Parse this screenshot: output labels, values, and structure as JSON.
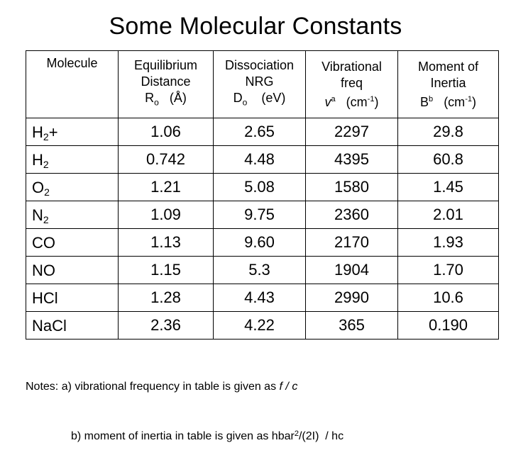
{
  "title": "Some Molecular Constants",
  "headers": {
    "molecule": "Molecule",
    "distance_l1": "Equilibrium",
    "distance_l2": "Distance",
    "distance_sym": "R",
    "distance_sub": "o",
    "distance_unit": "(Å)",
    "dissociation_l1": "Dissociation",
    "dissociation_l2": "NRG",
    "dissociation_sym": "D",
    "dissociation_sub": "o",
    "dissociation_unit": "(eV)",
    "vibrational_l1": "Vibrational",
    "vibrational_l2": "freq",
    "vibrational_sym": "v",
    "vibrational_sup": "a",
    "vibrational_unit_pre": "(cm",
    "vibrational_unit_exp": "-1",
    "vibrational_unit_post": ")",
    "inertia_l1": "Moment of",
    "inertia_l2": "Inertia",
    "inertia_sym": "B",
    "inertia_sup": "b",
    "inertia_unit_pre": "(cm",
    "inertia_unit_exp": "-1",
    "inertia_unit_post": ")"
  },
  "rows": [
    {
      "mol": "H",
      "sub": "2",
      "suffix": "+",
      "r": "1.06",
      "d": "2.65",
      "v": "2297",
      "b": "29.8"
    },
    {
      "mol": "H",
      "sub": "2",
      "suffix": "",
      "r": "0.742",
      "d": "4.48",
      "v": "4395",
      "b": "60.8"
    },
    {
      "mol": "O",
      "sub": "2",
      "suffix": "",
      "r": "1.21",
      "d": "5.08",
      "v": "1580",
      "b": "1.45"
    },
    {
      "mol": "N",
      "sub": "2",
      "suffix": "",
      "r": "1.09",
      "d": "9.75",
      "v": "2360",
      "b": "2.01"
    },
    {
      "mol": "CO",
      "sub": "",
      "suffix": "",
      "r": "1.13",
      "d": "9.60",
      "v": "2170",
      "b": "1.93"
    },
    {
      "mol": "NO",
      "sub": "",
      "suffix": "",
      "r": "1.15",
      "d": "5.3",
      "v": "1904",
      "b": "1.70"
    },
    {
      "mol": "HCl",
      "sub": "",
      "suffix": "",
      "r": "1.28",
      "d": "4.43",
      "v": "2990",
      "b": "10.6"
    },
    {
      "mol": "NaCl",
      "sub": "",
      "suffix": "",
      "r": "2.36",
      "d": "4.22",
      "v": "365",
      "b": "0.190"
    }
  ],
  "notes": {
    "a_pre": "Notes: a) vibrational frequency in table is given as ",
    "a_italic": "f / c",
    "b_pre": "b) moment of inertia in table is given as hbar",
    "b_sup": "2",
    "b_post": "/(2I)  / hc"
  }
}
